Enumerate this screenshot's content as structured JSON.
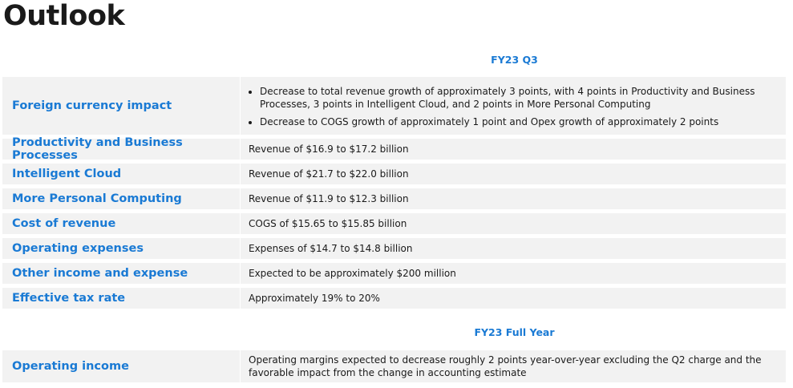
{
  "title": "Outlook",
  "sections": [
    {
      "header": "FY23 Q3",
      "rows": [
        {
          "label": "Foreign currency impact",
          "bullets": [
            "Decrease to total revenue growth of approximately 3 points, with 4 points in Productivity and Business Processes, 3 points in Intelligent Cloud, and 2 points in More Personal Computing",
            "Decrease to COGS growth of approximately 1 point and Opex growth of approximately 2 points"
          ]
        },
        {
          "label": "Productivity and Business Processes",
          "text": "Revenue of $16.9 to $17.2 billion"
        },
        {
          "label": "Intelligent Cloud",
          "text": "Revenue of $21.7 to $22.0 billion"
        },
        {
          "label": "More Personal Computing",
          "text": "Revenue of $11.9 to $12.3 billion"
        },
        {
          "label": "Cost of revenue",
          "text": "COGS of $15.65 to $15.85 billion"
        },
        {
          "label": "Operating expenses",
          "text": "Expenses of $14.7 to $14.8 billion"
        },
        {
          "label": "Other income and expense",
          "text": "Expected to be approximately $200 million"
        },
        {
          "label": "Effective tax rate",
          "text": "Approximately 19% to 20%"
        }
      ]
    },
    {
      "header": "FY23 Full Year",
      "rows": [
        {
          "label": "Operating income",
          "text": "Operating margins expected to decrease roughly 2 points year-over-year excluding the Q2 charge and the favorable impact from the change in accounting estimate"
        }
      ]
    }
  ]
}
